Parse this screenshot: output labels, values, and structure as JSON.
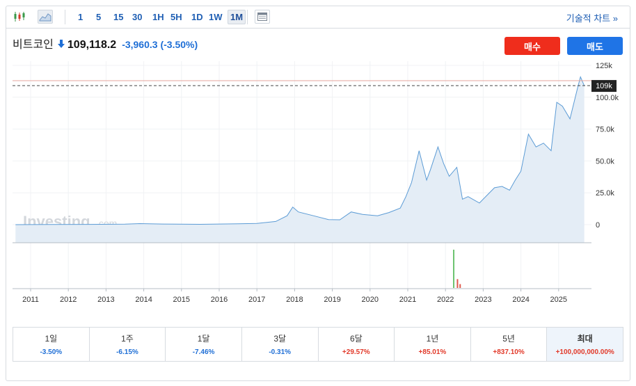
{
  "toolbar": {
    "candle_icon": "candlestick-icon",
    "area_icon": "area-chart-icon",
    "timeframes": [
      "1",
      "5",
      "15",
      "30",
      "1H",
      "5H",
      "1D",
      "1W",
      "1M"
    ],
    "active_timeframe": "1M",
    "calendar_icon": "calendar-icon",
    "technical_chart_link": "기술적 차트 »"
  },
  "header": {
    "name": "비트코인",
    "direction_icon": "down-arrow-icon",
    "price": "109,118.2",
    "change": "-3,960.3",
    "change_pct": "(-3.50%)"
  },
  "buttons": {
    "buy": "매수",
    "sell": "매도"
  },
  "colors": {
    "buy": "#ef2d1c",
    "sell": "#1f74e6",
    "negative": "#1f6fd6",
    "positive": "#e23a2a",
    "line": "#5b9bd5",
    "area": "#e4edf6"
  },
  "watermark": {
    "brand": "Investing",
    "suffix": ".com"
  },
  "chart_data": {
    "type": "area",
    "y_ticks": [
      "125k",
      "100.0k",
      "75.0k",
      "50.0k",
      "25.0k",
      "0"
    ],
    "ylim": [
      0,
      125000
    ],
    "x_ticks": [
      "2011",
      "2012",
      "2013",
      "2014",
      "2015",
      "2016",
      "2017",
      "2018",
      "2019",
      "2020",
      "2021",
      "2022",
      "2023",
      "2024",
      "2025"
    ],
    "current_price_label": "109k",
    "current_price": 109118,
    "reference_price": 113000,
    "series": [
      {
        "x": [
          2010.6,
          2011.5,
          2012.5,
          2013.5,
          2013.9,
          2014.5,
          2015.5,
          2016.5,
          2017.0,
          2017.5,
          2017.8,
          2017.95,
          2018.1,
          2018.5,
          2018.9,
          2019.2,
          2019.5,
          2019.8,
          2020.2,
          2020.5,
          2020.8,
          2020.95,
          2021.1,
          2021.3,
          2021.5,
          2021.6,
          2021.8,
          2021.95,
          2022.1,
          2022.3,
          2022.45,
          2022.6,
          2022.9,
          2023.1,
          2023.3,
          2023.5,
          2023.7,
          2023.85,
          2024.0,
          2024.2,
          2024.4,
          2024.6,
          2024.8,
          2024.95,
          2025.1,
          2025.3,
          2025.5,
          2025.58,
          2025.68
        ],
        "values": [
          0,
          100,
          200,
          400,
          800,
          500,
          300,
          700,
          1000,
          2500,
          7000,
          13800,
          10000,
          7000,
          4000,
          3800,
          10000,
          8000,
          7000,
          9500,
          13000,
          22000,
          33000,
          58000,
          35000,
          43000,
          61000,
          48000,
          38000,
          45000,
          20000,
          22000,
          17000,
          23000,
          29000,
          30000,
          27000,
          35000,
          42000,
          71000,
          61000,
          64000,
          58000,
          96000,
          93000,
          83000,
          107000,
          116000,
          109000
        ]
      }
    ],
    "volume": [
      {
        "x": 2022.2,
        "value": 100,
        "dir": "up"
      },
      {
        "x": 2022.3,
        "value": 23,
        "dir": "down"
      },
      {
        "x": 2022.37,
        "value": 10,
        "dir": "down"
      }
    ]
  },
  "performance": [
    {
      "label": "1일",
      "value": "-3.50%",
      "dir": "neg"
    },
    {
      "label": "1주",
      "value": "-6.15%",
      "dir": "neg"
    },
    {
      "label": "1달",
      "value": "-7.46%",
      "dir": "neg"
    },
    {
      "label": "3달",
      "value": "-0.31%",
      "dir": "neg"
    },
    {
      "label": "6달",
      "value": "+29.57%",
      "dir": "pos"
    },
    {
      "label": "1년",
      "value": "+85.01%",
      "dir": "pos"
    },
    {
      "label": "5년",
      "value": "+837.10%",
      "dir": "pos"
    },
    {
      "label": "최대",
      "value": "+100,000,000.00%",
      "dir": "pos",
      "active": true
    }
  ]
}
